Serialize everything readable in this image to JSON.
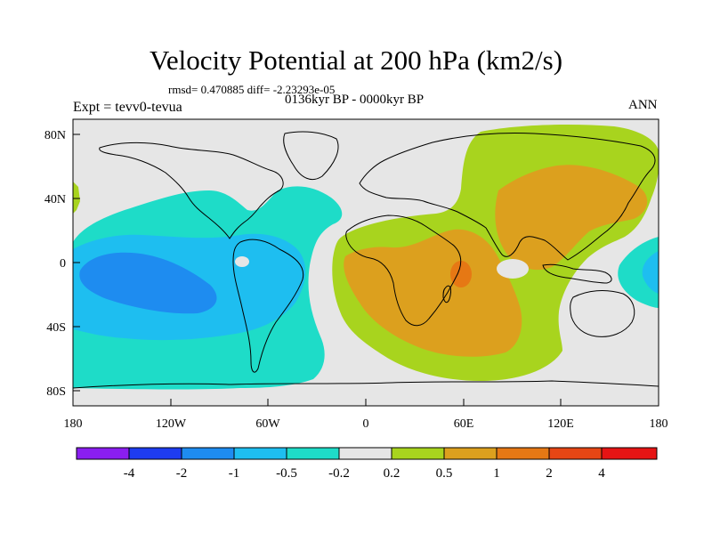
{
  "title": "Velocity Potential at 200 hPa (km2/s)",
  "stats": "rmsd= 0.470885  diff= -2.23293e-05",
  "period": "0136kyr BP - 0000kyr BP",
  "experiment": "Expt = tevv0-tevua",
  "season": "ANN",
  "lat_labels": [
    "80N",
    "40N",
    "0",
    "40S",
    "80S"
  ],
  "lon_labels": [
    "180",
    "120W",
    "60W",
    "0",
    "60E",
    "120E",
    "180"
  ],
  "colorbar": {
    "labels": [
      "-4",
      "-2",
      "-1",
      "-0.5",
      "-0.2",
      "0.2",
      "0.5",
      "1",
      "2",
      "4"
    ],
    "colors": [
      "#8a1ef0",
      "#1e3cf0",
      "#1e8cf0",
      "#1ebef0",
      "#1edcc8",
      "#e6e6e6",
      "#a8d41e",
      "#dca01e",
      "#e67814",
      "#e64614",
      "#e61414"
    ]
  },
  "colors": {
    "land_outline": "#000000",
    "neutral_fill": "#e6e6e6"
  }
}
